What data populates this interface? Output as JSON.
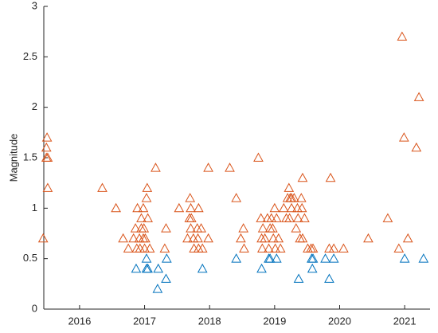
{
  "chart_data": {
    "type": "scatter",
    "ylabel": "Magnitude",
    "xlim": [
      2015.45,
      2021.39
    ],
    "ylim": [
      0,
      3
    ],
    "xticks": [
      2016,
      2017,
      2018,
      2019,
      2020,
      2021
    ],
    "yticks": [
      0,
      0.5,
      1,
      1.5,
      2,
      2.5,
      3
    ],
    "grid": false,
    "marker": "triangle",
    "series": [
      {
        "color": "#d95319",
        "x": [
          2015.44,
          2015.5,
          2015.49,
          2015.49,
          2015.51,
          2015.51,
          2016.35,
          2016.56,
          2016.67,
          2016.75,
          2016.83,
          2016.86,
          2016.88,
          2016.89,
          2016.92,
          2016.93,
          2016.95,
          2016.95,
          2016.98,
          2016.98,
          2016.99,
          2017.0,
          2017.01,
          2017.03,
          2017.04,
          2017.05,
          2017.08,
          2017.17,
          2017.31,
          2017.33,
          2017.53,
          2017.66,
          2017.69,
          2017.7,
          2017.71,
          2017.71,
          2017.72,
          2017.75,
          2017.76,
          2017.81,
          2017.82,
          2017.83,
          2017.83,
          2017.87,
          2017.89,
          2017.98,
          2017.98,
          2018.31,
          2018.41,
          2018.48,
          2018.52,
          2018.53,
          2018.75,
          2018.79,
          2018.8,
          2018.81,
          2018.82,
          2018.85,
          2018.89,
          2018.91,
          2018.93,
          2018.95,
          2018.97,
          2018.98,
          2019.0,
          2019.01,
          2019.03,
          2019.06,
          2019.09,
          2019.14,
          2019.18,
          2019.2,
          2019.22,
          2019.23,
          2019.24,
          2019.26,
          2019.26,
          2019.3,
          2019.33,
          2019.35,
          2019.36,
          2019.39,
          2019.41,
          2019.42,
          2019.43,
          2019.43,
          2019.46,
          2019.51,
          2019.56,
          2019.59,
          2019.84,
          2019.86,
          2019.91,
          2020.06,
          2020.44,
          2020.74,
          2020.91,
          2020.96,
          2020.99,
          2021.05,
          2021.18,
          2021.22
        ],
        "values": [
          0.7,
          1.7,
          1.6,
          1.5,
          1.5,
          1.2,
          1.2,
          1.0,
          0.7,
          0.6,
          0.7,
          0.8,
          0.6,
          1.0,
          0.7,
          0.6,
          0.8,
          0.9,
          1.0,
          0.7,
          0.8,
          0.6,
          0.7,
          1.1,
          1.2,
          0.9,
          0.6,
          1.4,
          0.6,
          0.8,
          1.0,
          0.7,
          0.9,
          1.1,
          0.8,
          1.0,
          0.9,
          0.7,
          0.6,
          0.8,
          0.7,
          0.6,
          1.0,
          0.8,
          0.6,
          0.7,
          1.4,
          1.4,
          1.1,
          0.7,
          0.8,
          0.6,
          1.5,
          0.9,
          0.7,
          0.6,
          0.8,
          0.7,
          0.9,
          0.6,
          0.8,
          0.9,
          0.8,
          0.7,
          1.0,
          0.6,
          0.9,
          0.7,
          0.6,
          1.0,
          0.9,
          1.1,
          1.2,
          0.9,
          1.1,
          1.1,
          1.0,
          1.1,
          0.8,
          1.0,
          0.9,
          0.7,
          1.1,
          1.0,
          1.3,
          0.7,
          0.9,
          0.6,
          0.6,
          0.6,
          0.6,
          1.3,
          0.6,
          0.6,
          0.7,
          0.9,
          0.6,
          2.7,
          1.7,
          0.7,
          1.6,
          2.1
        ]
      },
      {
        "color": "#0072bd",
        "x": [
          2016.87,
          2017.03,
          2017.03,
          2017.05,
          2017.2,
          2017.21,
          2017.33,
          2017.34,
          2017.89,
          2018.41,
          2018.8,
          2018.91,
          2018.93,
          2019.03,
          2019.37,
          2019.57,
          2019.59,
          2019.58,
          2019.78,
          2019.84,
          2019.91,
          2021.0,
          2021.29
        ],
        "values": [
          0.4,
          0.5,
          0.4,
          0.4,
          0.2,
          0.4,
          0.3,
          0.5,
          0.4,
          0.5,
          0.4,
          0.5,
          0.5,
          0.5,
          0.3,
          0.5,
          0.5,
          0.4,
          0.5,
          0.3,
          0.5,
          0.5,
          0.5
        ]
      }
    ]
  }
}
